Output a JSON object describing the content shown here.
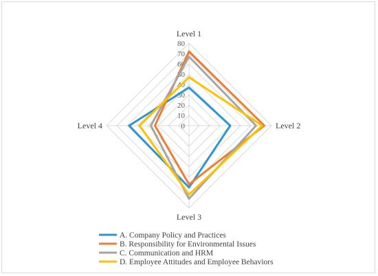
{
  "chart_data": {
    "type": "radar",
    "title": "",
    "categories": [
      "Level 1",
      "Level 2",
      "Level 3",
      "Level 4"
    ],
    "rlim": [
      0,
      80
    ],
    "ticks": [
      0,
      10,
      20,
      30,
      40,
      50,
      60,
      70,
      80
    ],
    "grid": true,
    "legend_position": "bottom",
    "series": [
      {
        "name": "A. Company Policy and Practices",
        "color": "#2e95d3",
        "values": [
          37,
          40,
          60,
          58
        ]
      },
      {
        "name": "B. Responsibility for Environmental Issues",
        "color": "#ed7d31",
        "values": [
          72,
          73,
          57,
          33
        ]
      },
      {
        "name": "C. Communication and HRM",
        "color": "#a5a5a5",
        "values": [
          67,
          65,
          71,
          37
        ]
      },
      {
        "name": "D. Employee Attitudes and Employee Behaviors",
        "color": "#ffc000",
        "values": [
          47,
          71,
          67,
          48
        ]
      }
    ]
  }
}
